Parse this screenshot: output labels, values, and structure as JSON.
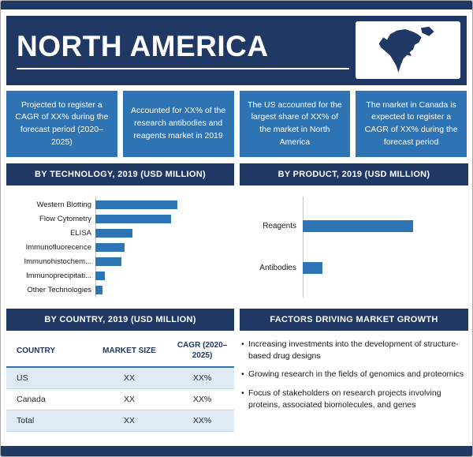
{
  "top_banner": {
    "title": "NORTH AMERICA"
  },
  "callouts": [
    "Projected to register a CAGR of XX% during the forecast period (2020–2025)",
    "Accounted for XX% of the research antibodies and reagents market in 2019",
    "The US accounted for the largest share of XX% of the market in North America",
    "The market in Canada is expected to register a CAGR of XX% during the forecast period"
  ],
  "chart_data": [
    {
      "type": "bar",
      "orientation": "horizontal",
      "title": "BY TECHNOLOGY, 2019 (USD MILLION)",
      "categories": [
        "Western Blotting",
        "Flow Cytometry",
        "ELISA",
        "Immunofluorecence",
        "Immunohistochem...",
        "Immunoprecipitati...",
        "Other Technologies"
      ],
      "values": [
        100,
        93,
        45,
        36,
        32,
        12,
        9
      ],
      "xlim": [
        0,
        170
      ],
      "value_labels_shown": false,
      "note": "No numeric data labels in source; values are relative bar lengths",
      "bar_color": "#2e75b6"
    },
    {
      "type": "bar",
      "orientation": "horizontal",
      "title": "BY PRODUCT, 2019 (USD MILLION)",
      "categories": [
        "Reagents",
        "Antibodies"
      ],
      "values": [
        100,
        18
      ],
      "xlim": [
        0,
        150
      ],
      "value_labels_shown": false,
      "note": "No numeric data labels in source; values are relative bar lengths",
      "bar_color": "#2e75b6"
    }
  ],
  "country_section": {
    "title": "BY COUNTRY, 2019 (USD MILLION)",
    "table": {
      "headers": [
        "COUNTRY",
        "MARKET SIZE",
        "CAGR (2020–2025)"
      ],
      "rows": [
        [
          "US",
          "XX",
          "XX%"
        ],
        [
          "Canada",
          "XX",
          "XX%"
        ],
        [
          "Total",
          "XX",
          "XX%"
        ]
      ]
    }
  },
  "factors_section": {
    "title": "FACTORS DRIVING MARKET GROWTH",
    "items": [
      "Increasing investments into the development of structure-based drug designs",
      "Growing research in the fields of genomics and proteomics",
      "Focus of stakeholders on research projects involving proteins, associated biomolecules, and genes"
    ]
  },
  "icons": {
    "map": "north-america-map-icon"
  },
  "colors": {
    "navy": "#1f3864",
    "blue": "#2e74b5",
    "bar_blue": "#2e75b6",
    "table_row_alt": "#deeaf6",
    "white": "#ffffff"
  }
}
